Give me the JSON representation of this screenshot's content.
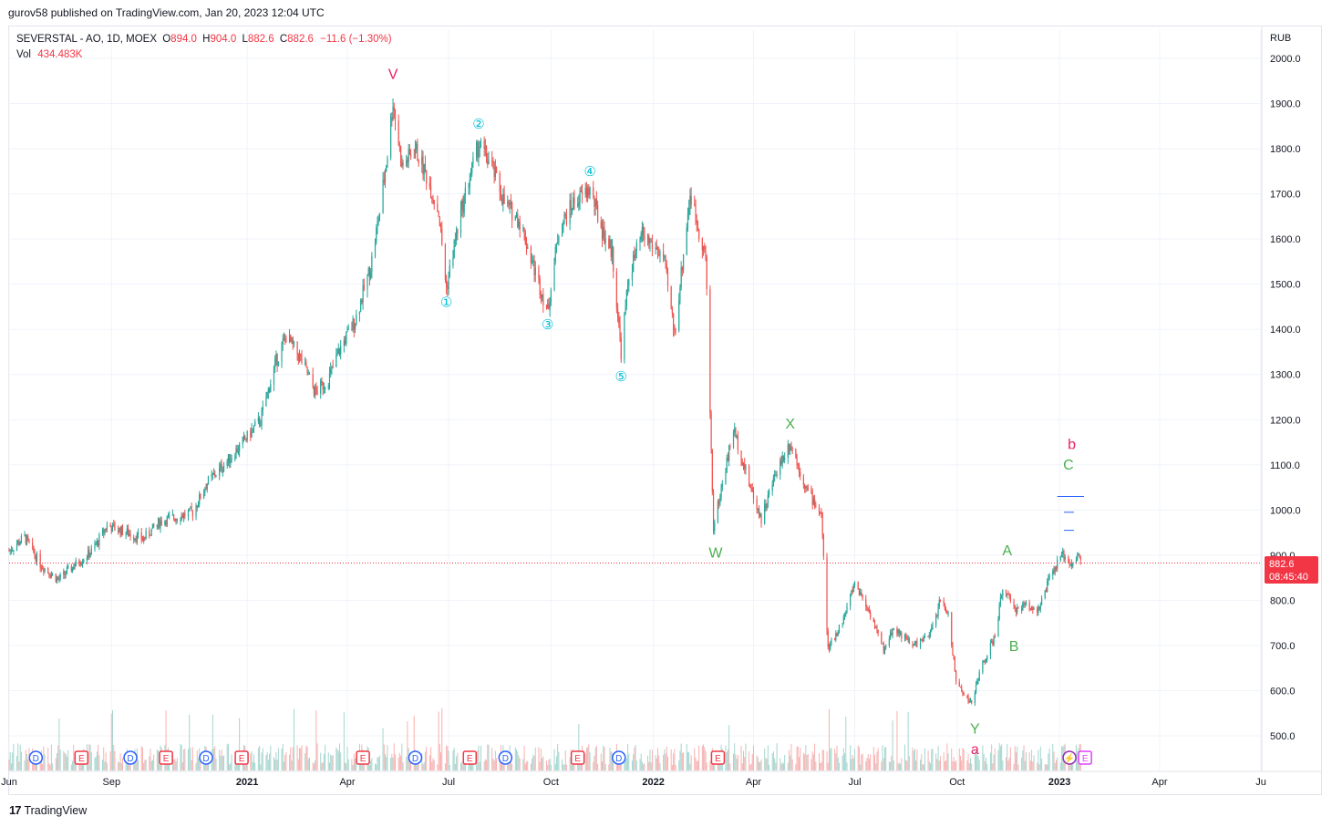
{
  "header": {
    "published_line": "gurov58 published on TradingView.com, Jan 20, 2023 12:04 UTC"
  },
  "legend": {
    "symbol": "SEVERSTAL - AO, 1D, MOEX",
    "open_label": "O",
    "open": "894.0",
    "high_label": "H",
    "high": "904.0",
    "low_label": "L",
    "low": "882.6",
    "close_label": "C",
    "close": "882.6",
    "change": "−11.6 (−1.30%)",
    "vol_label": "Vol",
    "vol": "434.483K"
  },
  "footer": {
    "brand": "TradingView",
    "logo_text": "17"
  },
  "price_box": {
    "price": "882.6",
    "countdown": "08:45:40"
  },
  "colors": {
    "up": "#26a69a",
    "down": "#ef5350",
    "wave_red": "#e91e63",
    "wave_teal": "#00bcd4",
    "wave_green": "#4caf50",
    "target": "#2962ff",
    "dividend": "#2962ff",
    "earnings": "#f23645",
    "split": "#089981"
  },
  "chart_data": {
    "type": "candlestick",
    "currency": "RUB",
    "x_axis": {
      "ticks": [
        "Jun",
        "Sep",
        "2021",
        "Apr",
        "Jul",
        "Oct",
        "2022",
        "Apr",
        "Jul",
        "Oct",
        "2023",
        "Apr",
        "Ju"
      ]
    },
    "y_axis": {
      "ticks": [
        "500.0",
        "600.0",
        "700.0",
        "800.0",
        "900.0",
        "1000.0",
        "1100.0",
        "1200.0",
        "1300.0",
        "1400.0",
        "1500.0",
        "1600.0",
        "1700.0",
        "1800.0",
        "1900.0",
        "2000.0"
      ],
      "range": [
        440,
        2050
      ]
    },
    "close_path": [
      [
        "2020-06-01",
        910
      ],
      [
        "2020-06-15",
        940
      ],
      [
        "2020-06-29",
        880
      ],
      [
        "2020-07-15",
        845
      ],
      [
        "2020-07-31",
        880
      ],
      [
        "2020-08-15",
        910
      ],
      [
        "2020-08-28",
        965
      ],
      [
        "2020-09-15",
        950
      ],
      [
        "2020-09-29",
        935
      ],
      [
        "2020-10-15",
        975
      ],
      [
        "2020-10-30",
        985
      ],
      [
        "2020-11-13",
        995
      ],
      [
        "2020-11-26",
        1060
      ],
      [
        "2020-12-11",
        1100
      ],
      [
        "2020-12-25",
        1140
      ],
      [
        "2021-01-13",
        1200
      ],
      [
        "2021-01-27",
        1330
      ],
      [
        "2021-02-05",
        1385
      ],
      [
        "2021-02-19",
        1330
      ],
      [
        "2021-03-03",
        1260
      ],
      [
        "2021-03-15",
        1290
      ],
      [
        "2021-03-26",
        1360
      ],
      [
        "2021-04-08",
        1420
      ],
      [
        "2021-04-22",
        1540
      ],
      [
        "2021-04-30",
        1660
      ],
      [
        "2021-05-07",
        1790
      ],
      [
        "2021-05-12",
        1905
      ],
      [
        "2021-05-20",
        1760
      ],
      [
        "2021-06-01",
        1800
      ],
      [
        "2021-06-11",
        1740
      ],
      [
        "2021-06-22",
        1660
      ],
      [
        "2021-06-29",
        1490
      ],
      [
        "2021-07-07",
        1600
      ],
      [
        "2021-07-16",
        1700
      ],
      [
        "2021-07-28",
        1810
      ],
      [
        "2021-08-09",
        1760
      ],
      [
        "2021-08-20",
        1680
      ],
      [
        "2021-09-03",
        1640
      ],
      [
        "2021-09-14",
        1550
      ],
      [
        "2021-09-28",
        1440
      ],
      [
        "2021-10-08",
        1620
      ],
      [
        "2021-10-21",
        1680
      ],
      [
        "2021-11-05",
        1710
      ],
      [
        "2021-11-16",
        1620
      ],
      [
        "2021-11-25",
        1570
      ],
      [
        "2021-12-03",
        1350
      ],
      [
        "2021-12-10",
        1520
      ],
      [
        "2021-12-22",
        1610
      ],
      [
        "2022-01-10",
        1560
      ],
      [
        "2022-01-20",
        1390
      ],
      [
        "2022-02-03",
        1700
      ],
      [
        "2022-02-17",
        1560
      ],
      [
        "2022-02-24",
        960
      ],
      [
        "2022-03-14",
        1180
      ],
      [
        "2022-03-28",
        1060
      ],
      [
        "2022-04-08",
        980
      ],
      [
        "2022-04-22",
        1090
      ],
      [
        "2022-05-04",
        1150
      ],
      [
        "2022-05-18",
        1050
      ],
      [
        "2022-06-01",
        990
      ],
      [
        "2022-06-07",
        690
      ],
      [
        "2022-06-21",
        760
      ],
      [
        "2022-07-01",
        840
      ],
      [
        "2022-07-15",
        770
      ],
      [
        "2022-07-27",
        690
      ],
      [
        "2022-08-05",
        740
      ],
      [
        "2022-08-22",
        700
      ],
      [
        "2022-09-06",
        720
      ],
      [
        "2022-09-16",
        800
      ],
      [
        "2022-09-23",
        770
      ],
      [
        "2022-09-30",
        620
      ],
      [
        "2022-10-14",
        570
      ],
      [
        "2022-10-21",
        640
      ],
      [
        "2022-11-04",
        720
      ],
      [
        "2022-11-11",
        830
      ],
      [
        "2022-11-21",
        780
      ],
      [
        "2022-12-02",
        790
      ],
      [
        "2022-12-14",
        780
      ],
      [
        "2022-12-23",
        850
      ],
      [
        "2023-01-04",
        900
      ],
      [
        "2023-01-13",
        880
      ],
      [
        "2023-01-18",
        900
      ],
      [
        "2023-01-20",
        882.6
      ]
    ],
    "current_price": 882.6,
    "wave_labels": [
      {
        "text": "V",
        "date": "2021-05-12",
        "price": 1955,
        "group": "red"
      },
      {
        "text": "②",
        "date": "2021-07-28",
        "price": 1845,
        "group": "teal"
      },
      {
        "text": "④",
        "date": "2021-11-05",
        "price": 1740,
        "group": "teal"
      },
      {
        "text": "①",
        "date": "2021-06-29",
        "price": 1450,
        "group": "teal"
      },
      {
        "text": "③",
        "date": "2021-09-28",
        "price": 1400,
        "group": "teal"
      },
      {
        "text": "⑤",
        "date": "2021-12-03",
        "price": 1285,
        "group": "teal"
      },
      {
        "text": "X",
        "date": "2022-05-04",
        "price": 1180,
        "group": "green"
      },
      {
        "text": "W",
        "date": "2022-02-26",
        "price": 895,
        "group": "green"
      },
      {
        "text": "A",
        "date": "2022-11-15",
        "price": 900,
        "group": "green"
      },
      {
        "text": "B",
        "date": "2022-11-21",
        "price": 688,
        "group": "green"
      },
      {
        "text": "Y",
        "date": "2022-10-17",
        "price": 505,
        "group": "green"
      },
      {
        "text": "a",
        "date": "2022-10-17",
        "price": 460,
        "group": "red"
      },
      {
        "text": "C",
        "date": "2023-01-09",
        "price": 1090,
        "group": "green"
      },
      {
        "text": "b",
        "date": "2023-01-12",
        "price": 1135,
        "group": "red"
      }
    ],
    "target_lines": [
      {
        "price": 1030,
        "from": "2022-12-30",
        "to": "2023-01-23"
      },
      {
        "price": 995,
        "from": "2023-01-05",
        "to": "2023-01-14"
      },
      {
        "price": 955,
        "from": "2023-01-05",
        "to": "2023-01-14"
      }
    ],
    "event_markers": [
      {
        "type": "D",
        "date": "2020-06-25"
      },
      {
        "type": "E",
        "date": "2020-08-05"
      },
      {
        "type": "D",
        "date": "2020-09-18"
      },
      {
        "type": "E",
        "date": "2020-10-20"
      },
      {
        "type": "D",
        "date": "2020-11-25"
      },
      {
        "type": "E",
        "date": "2020-12-27"
      },
      {
        "type": "E",
        "date": "2021-04-15"
      },
      {
        "type": "D",
        "date": "2021-06-01"
      },
      {
        "type": "E",
        "date": "2021-07-20"
      },
      {
        "type": "D",
        "date": "2021-08-21"
      },
      {
        "type": "E",
        "date": "2021-10-25"
      },
      {
        "type": "D",
        "date": "2021-12-01"
      },
      {
        "type": "E",
        "date": "2022-02-28"
      },
      {
        "type": "split",
        "date": "2023-01-10"
      },
      {
        "type": "E2",
        "date": "2023-01-24"
      }
    ]
  }
}
